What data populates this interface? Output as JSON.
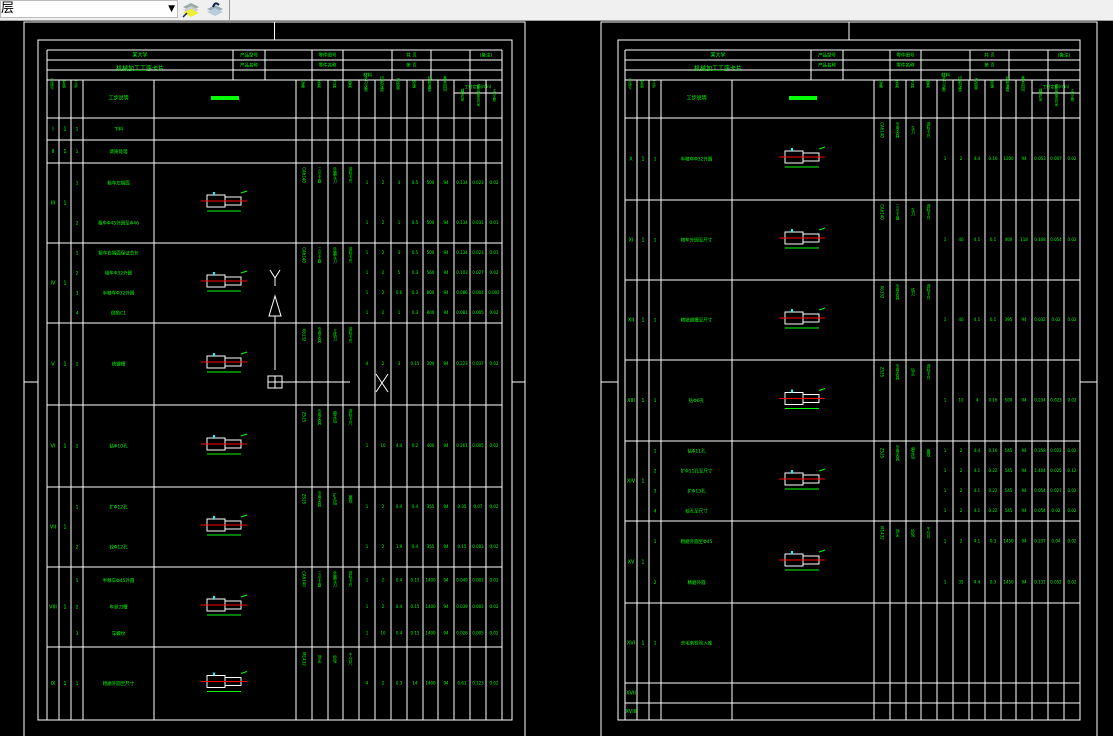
{
  "toolbar": {
    "layer_combo_value": "图层",
    "icons": [
      "layer-properties-icon",
      "layer-previous-icon"
    ]
  },
  "colors": {
    "background": "#000000",
    "lines": "#ffffff",
    "text": "#00ff00",
    "centerline": "#ff0000",
    "dimension": "#00ffff"
  },
  "sheets": [
    {
      "header": {
        "school": "某大学",
        "title": "机械加工工序卡片",
        "product_model": "产品型号",
        "part_no": "零件图号",
        "product_name": "产品名称",
        "part_name": "零件名称",
        "page_total": "共 页",
        "page_no": "第 页",
        "material": "材料",
        "remark": "(备注)"
      },
      "columns": [
        "工序号",
        "安装",
        "工步",
        "工步说明",
        "工序简图",
        "设备",
        "夹具",
        "刀具",
        "量具",
        "走刀次数",
        "切削深度",
        "进给量",
        "转速",
        "切削速度",
        "基本时间",
        "辅助时间",
        "工作地服务时间",
        "工时定额"
      ],
      "time_label": "工时定额(min)",
      "rows": [
        {
          "no": "I",
          "install": "1",
          "equipment": "",
          "fixture": "",
          "tool": "",
          "gauge": "",
          "steps": [
            {
              "no": "1",
              "desc": "下料",
              "values": []
            }
          ]
        },
        {
          "no": "II",
          "install": "1",
          "equipment": "",
          "fixture": "",
          "tool": "",
          "gauge": "",
          "steps": [
            {
              "no": "1",
              "desc": "调质处理",
              "values": []
            }
          ]
        },
        {
          "no": "III",
          "install": "1",
          "equipment": "CA6140",
          "fixture": "三爪卡盘",
          "tool": "外圆车刀",
          "gauge": "游标卡尺",
          "steps": [
            {
              "no": "1",
              "desc": "粗车左端面",
              "values": [
                "1",
                "2",
                "3",
                "0.5",
                "500",
                "94",
                "0.134",
                "0.023",
                "0.02"
              ]
            },
            {
              "no": "2",
              "desc": "粗车Φ45外圆至Φ46",
              "values": [
                "1",
                "2",
                "1",
                "0.5",
                "500",
                "94",
                "0.134",
                "0.031",
                "0.01"
              ]
            }
          ]
        },
        {
          "no": "IV",
          "install": "1",
          "equipment": "CA6140",
          "fixture": "三爪卡盘",
          "tool": "外圆车刀",
          "gauge": "游标卡尺",
          "steps": [
            {
              "no": "1",
              "desc": "粗车右端面保证总长",
              "values": [
                "1",
                "2",
                "3",
                "0.5",
                "500",
                "94",
                "0.134",
                "0.023",
                "0.01"
              ]
            },
            {
              "no": "2",
              "desc": "粗车Φ32外圆",
              "values": [
                "1",
                "2",
                "5",
                "0.3",
                "560",
                "94",
                "0.103",
                "0.027",
                "0.02"
              ]
            },
            {
              "no": "3",
              "desc": "半精车Φ32外圆",
              "values": [
                "1",
                "2",
                "0.6",
                "0.3",
                "800",
                "94",
                "0.086",
                "0.004",
                "0.002"
              ]
            },
            {
              "no": "4",
              "desc": "倒角C1",
              "values": [
                "1",
                "2",
                "1",
                "0.3",
                "800",
                "94",
                "0.081",
                "0.005",
                "0.02"
              ]
            }
          ]
        },
        {
          "no": "V",
          "install": "1",
          "equipment": "X6132",
          "fixture": "专用夹具",
          "tool": "立铣刀",
          "gauge": "游标卡尺",
          "steps": [
            {
              "no": "1",
              "desc": "铣键槽",
              "values": [
                "4",
                "2",
                "3",
                "0.15",
                "300",
                "94",
                "0.223",
                "0.037",
                "0.02"
              ]
            }
          ]
        },
        {
          "no": "VI",
          "install": "1",
          "equipment": "Z525",
          "fixture": "专用夹具",
          "tool": "麻花钻",
          "gauge": "游标卡尺",
          "steps": [
            {
              "no": "1",
              "desc": "钻Φ10孔",
              "values": [
                "1",
                "10",
                "4.4",
                "0.2",
                "400",
                "94",
                "0.261",
                "0.005",
                "0.02"
              ]
            }
          ]
        },
        {
          "no": "VII",
          "install": "1",
          "equipment": "Z525",
          "fixture": "专用夹具",
          "tool": "扩孔钻",
          "gauge": "塞规",
          "steps": [
            {
              "no": "1",
              "desc": "扩Φ12孔",
              "values": [
                "1",
                "2",
                "0.4",
                "0.4",
                "355",
                "94",
                "0.35",
                "0.07",
                "0.02"
              ]
            },
            {
              "no": "2",
              "desc": "铰Φ12孔",
              "values": [
                "1",
                "2",
                "1.9",
                "0.4",
                "355",
                "94",
                "0.15",
                "0.003",
                "0.02"
              ]
            }
          ]
        },
        {
          "no": "VIII",
          "install": "1",
          "equipment": "CA6140",
          "fixture": "三爪卡盘",
          "tool": "外圆车刀",
          "gauge": "游标卡尺",
          "steps": [
            {
              "no": "1",
              "desc": "半精车Φ45外圆",
              "values": [
                "1",
                "2",
                "0.4",
                "0.15",
                "1400",
                "94",
                "0.049",
                "0.003",
                "0.02"
              ]
            },
            {
              "no": "2",
              "desc": "车退刀槽",
              "values": [
                "1",
                "2",
                "0.4",
                "0.15",
                "1400",
                "94",
                "0.039",
                "0.003",
                "0.02"
              ]
            },
            {
              "no": "3",
              "desc": "车螺纹",
              "values": [
                "1",
                "10",
                "0.4",
                "0.15",
                "1400",
                "94",
                "0.026",
                "0.005",
                "0.02"
              ]
            }
          ]
        },
        {
          "no": "IX",
          "install": "1",
          "equipment": "M1432",
          "fixture": "顶尖",
          "tool": "砂轮",
          "gauge": "千分尺",
          "steps": [
            {
              "no": "1",
              "desc": "粗磨外圆至尺寸",
              "values": [
                "4",
                "2",
                "0.3",
                "14",
                "1400",
                "94",
                "0.61",
                "0.123",
                "0.02"
              ]
            }
          ]
        }
      ]
    },
    {
      "header": {
        "school": "某大学",
        "title": "机械加工工序卡片",
        "product_model": "产品型号",
        "part_no": "零件图号",
        "product_name": "产品名称",
        "part_name": "零件名称",
        "page_total": "共 页",
        "page_no": "第 页",
        "material": "材料",
        "remark": "(备注)"
      },
      "columns": [
        "工序号",
        "安装",
        "工步",
        "工步说明",
        "工序简图",
        "设备",
        "夹具",
        "刀具",
        "量具",
        "走刀次数",
        "切削深度",
        "进给量",
        "转速",
        "切削速度",
        "基本时间",
        "辅助时间",
        "工作地服务时间",
        "工时定额"
      ],
      "time_label": "工时定额(min)",
      "rows": [
        {
          "no": "X",
          "install": "1",
          "equipment": "CA6140",
          "fixture": "专用夹具",
          "tool": "车刀",
          "gauge": "游标卡尺",
          "steps": [
            {
              "no": "1",
              "desc": "半精车Φ32外圆",
              "values": [
                "1",
                "2",
                "4.4",
                "0.16",
                "1200",
                "94",
                "0.053",
                "0.007",
                "0.02"
              ]
            }
          ]
        },
        {
          "no": "XI",
          "install": "1",
          "equipment": "CA6140",
          "fixture": "三爪卡盘",
          "tool": "车刀",
          "gauge": "游标卡尺",
          "steps": [
            {
              "no": "1",
              "desc": "精车外圆至尺寸",
              "values": [
                "1",
                "40",
                "4.1",
                "0.1",
                "400",
                "118",
                "0.108",
                "0.054",
                "0.02"
              ]
            }
          ]
        },
        {
          "no": "XII",
          "install": "1",
          "equipment": "X6132",
          "fixture": "专用夹具",
          "tool": "铣刀",
          "gauge": "游标卡尺",
          "steps": [
            {
              "no": "1",
              "desc": "精铣键槽至尺寸",
              "values": [
                "1",
                "40",
                "4.1",
                "0.1",
                "395",
                "94",
                "0.032",
                "0.02",
                "0.02"
              ]
            }
          ]
        },
        {
          "no": "XIII",
          "install": "1",
          "equipment": "Z525",
          "fixture": "专用夹具",
          "tool": "钻头",
          "gauge": "游标卡尺",
          "steps": [
            {
              "no": "1",
              "desc": "钻Φ6孔",
              "values": [
                "1",
                "10",
                "4",
                "0.16",
                "500",
                "94",
                "0.234",
                "0.023",
                "0.02"
              ]
            }
          ]
        },
        {
          "no": "XIV",
          "install": "1",
          "equipment": "Z525",
          "fixture": "专用夹具",
          "tool": "麻花钻",
          "gauge": "塞规",
          "steps": [
            {
              "no": "1",
              "desc": "钻Φ11孔",
              "values": [
                "1",
                "2",
                "4.4",
                "0.16",
                "545",
                "94",
                "0.358",
                "0.022",
                "0.02"
              ]
            },
            {
              "no": "2",
              "desc": "扩Φ11孔至尺寸",
              "values": [
                "1",
                "2",
                "4.1",
                "0.22",
                "545",
                "94",
                "1.404",
                "0.025",
                "0.12"
              ]
            },
            {
              "no": "3",
              "desc": "扩Φ13孔",
              "values": [
                "1",
                "2",
                "4.1",
                "0.22",
                "545",
                "94",
                "0.054",
                "0.027",
                "0.02"
              ]
            },
            {
              "no": "4",
              "desc": "铰孔至尺寸",
              "values": [
                "1",
                "2",
                "4.1",
                "0.22",
                "545",
                "94",
                "0.054",
                "0.02",
                "0.02"
              ]
            }
          ]
        },
        {
          "no": "XV",
          "install": "1",
          "equipment": "M1432",
          "fixture": "顶尖",
          "tool": "砂轮",
          "gauge": "千分尺",
          "steps": [
            {
              "no": "1",
              "desc": "粗磨外圆至Φ45",
              "values": [
                "1",
                "2",
                "4.1",
                "0.3",
                "1450",
                "94",
                "0.257",
                "0.04",
                "0.02"
              ]
            },
            {
              "no": "2",
              "desc": "精磨外圆",
              "values": [
                "1",
                "35",
                "4.4",
                "0.3",
                "1450",
                "94",
                "0.131",
                "0.052",
                "0.02"
              ]
            }
          ]
        },
        {
          "no": "XVI",
          "install": "1",
          "equipment": "",
          "fixture": "",
          "tool": "",
          "gauge": "",
          "steps": [
            {
              "no": "1",
              "desc": "去毛刺检验入库",
              "values": []
            }
          ]
        },
        {
          "no": "XVII",
          "install": "",
          "equipment": "",
          "fixture": "",
          "tool": "",
          "gauge": "",
          "steps": []
        },
        {
          "no": "XVIII",
          "install": "",
          "equipment": "",
          "fixture": "",
          "tool": "",
          "gauge": "",
          "steps": []
        }
      ]
    }
  ]
}
